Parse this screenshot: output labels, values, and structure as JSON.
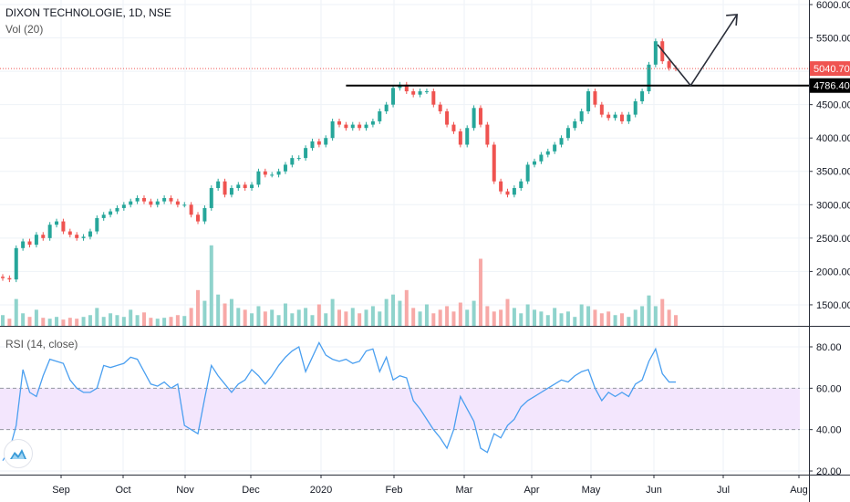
{
  "header": {
    "title": "DIXON TECHNOLOGIE, 1D, NSE",
    "volume_label": "Vol (20)"
  },
  "rsi_panel": {
    "label": "RSI (14, close)"
  },
  "colors": {
    "up": "#26a69a",
    "down": "#ef5350",
    "up_volume": "#8fd3cc",
    "down_volume": "#f7a9a7",
    "rsi_line": "#4a9ff0",
    "rsi_band": "#f3e6fd",
    "grid": "#eef2f7",
    "drawing": "#000000",
    "arrow": "#2a2e39"
  },
  "chart_data": [
    {
      "type": "candlestick",
      "title": "DIXON TECHNOLOGIE, 1D, NSE",
      "ylim": [
        1100,
        6050
      ],
      "y_ticks": [
        "6000.00",
        "5500.00",
        "5000.00",
        "4500.00",
        "4000.00",
        "3500.00",
        "3000.00",
        "2500.00",
        "2000.00",
        "1500.00"
      ],
      "y_tick_values": [
        6000,
        5500,
        5000,
        4500,
        4000,
        3500,
        3000,
        2500,
        2000,
        1500
      ],
      "x_ticks": [
        "Sep",
        "Oct",
        "Nov",
        "Dec",
        "2020",
        "Feb",
        "Mar",
        "Apr",
        "May",
        "Jun",
        "Jul",
        "Aug"
      ],
      "close": [
        1900,
        1880,
        2350,
        2450,
        2400,
        2550,
        2500,
        2700,
        2750,
        2600,
        2550,
        2500,
        2520,
        2600,
        2800,
        2850,
        2900,
        2950,
        3000,
        3050,
        3100,
        3050,
        3000,
        3050,
        3100,
        3050,
        3000,
        3000,
        2850,
        2750,
        2950,
        3250,
        3350,
        3150,
        3250,
        3300,
        3250,
        3300,
        3500,
        3450,
        3450,
        3500,
        3600,
        3700,
        3700,
        3850,
        3950,
        3900,
        4000,
        4250,
        4200,
        4150,
        4200,
        4150,
        4200,
        4250,
        4400,
        4500,
        4750,
        4800,
        4700,
        4650,
        4700,
        4700,
        4500,
        4400,
        4200,
        4100,
        3900,
        4150,
        4450,
        4200,
        3900,
        3350,
        3200,
        3150,
        3250,
        3350,
        3600,
        3650,
        3750,
        3800,
        3900,
        4000,
        4150,
        4250,
        4400,
        4700,
        4500,
        4350,
        4300,
        4350,
        4250,
        4350,
        4550,
        4700,
        5100,
        5450,
        5150,
        5050,
        5040.7
      ],
      "volume_relative": [
        12,
        8,
        30,
        14,
        10,
        18,
        9,
        8,
        10,
        7,
        9,
        8,
        10,
        12,
        20,
        10,
        14,
        12,
        10,
        18,
        12,
        15,
        9,
        8,
        9,
        10,
        12,
        11,
        20,
        40,
        28,
        90,
        35,
        25,
        30,
        20,
        18,
        14,
        22,
        16,
        18,
        12,
        25,
        14,
        18,
        20,
        12,
        24,
        14,
        30,
        18,
        16,
        20,
        14,
        18,
        22,
        16,
        30,
        35,
        28,
        40,
        20,
        16,
        24,
        14,
        18,
        22,
        16,
        26,
        18,
        28,
        75,
        22,
        16,
        18,
        30,
        20,
        14,
        24,
        18,
        16,
        12,
        20,
        14,
        16,
        10,
        24,
        22,
        18,
        14,
        16,
        12,
        14,
        10,
        18,
        22,
        34,
        22,
        30,
        18,
        12
      ],
      "last_price_label": "5040.70",
      "last_price": 5040.7,
      "support_level_label": "4786.40",
      "support_level": 4786.4,
      "drawings": {
        "horizontal_line": {
          "price": 4786.4,
          "from_index": 51
        },
        "arrow_path": [
          [
            97.3,
            5400
          ],
          [
            102.2,
            4786.4
          ],
          [
            109.1,
            5850
          ]
        ]
      }
    },
    {
      "type": "line",
      "title": "RSI (14, close)",
      "ylim": [
        17,
        87
      ],
      "y_ticks": [
        "80.00",
        "60.00",
        "40.00",
        "20.00"
      ],
      "y_tick_values": [
        80,
        60,
        40,
        20
      ],
      "band": [
        40,
        60
      ],
      "values": [
        25,
        30,
        42,
        69,
        58,
        56,
        66,
        74,
        73,
        72,
        64,
        60,
        58,
        58,
        60,
        71,
        70,
        71,
        72,
        75,
        74,
        68,
        62,
        61,
        63,
        60,
        62,
        42,
        40,
        38,
        55,
        71,
        66,
        62,
        58,
        62,
        64,
        69,
        66,
        62,
        66,
        71,
        75,
        78,
        80,
        68,
        75,
        82,
        76,
        74,
        73,
        74,
        72,
        73,
        78,
        79,
        68,
        75,
        64,
        66,
        65,
        54,
        50,
        45,
        40,
        36,
        31,
        40,
        56,
        50,
        44,
        31,
        29,
        38,
        36,
        42,
        45,
        51,
        54,
        56,
        58,
        60,
        62,
        64,
        63,
        66,
        68,
        69,
        60,
        54,
        58,
        56,
        58,
        56,
        62,
        64,
        73,
        79,
        67,
        63,
        63
      ]
    }
  ]
}
